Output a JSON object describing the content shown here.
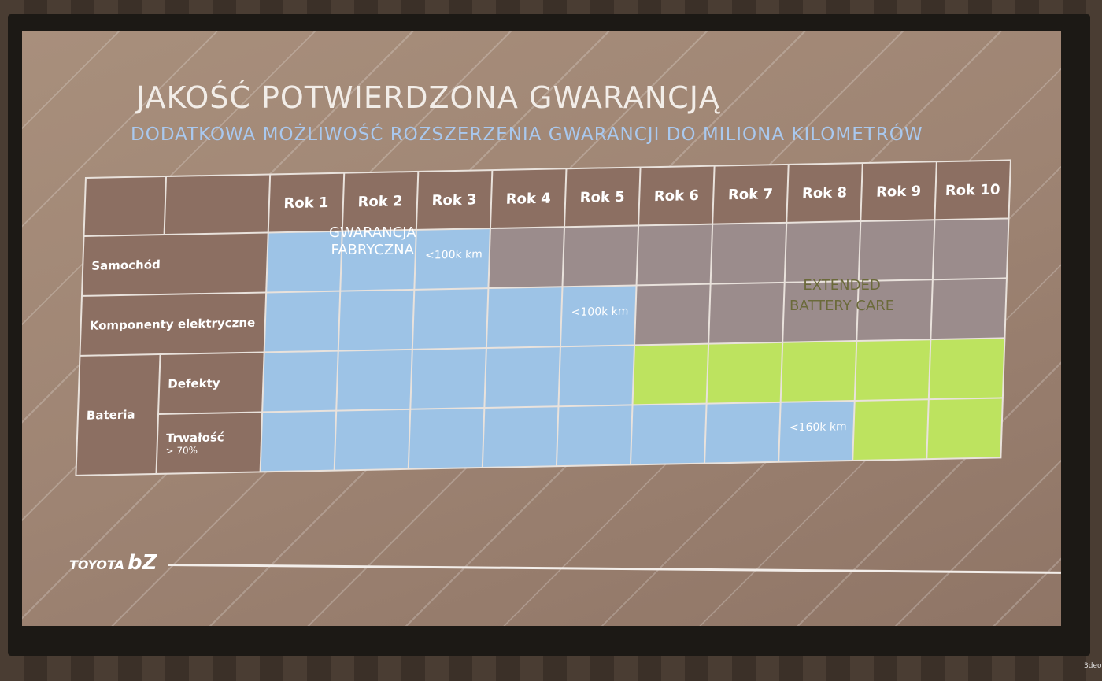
{
  "slide": {
    "title": "JAKOŚĆ POTWIERDZONA GWARANCJĄ",
    "subtitle": "DODATKOWA MOŻLIWOŚĆ ROZSZERZENIA GWARANCJI DO MILIONA KILOMETRÓW",
    "logo_text": "TOYOTA",
    "logo_mark": "bZ",
    "overlay_factory": [
      "GWARANCJA",
      "FABRYCZNA"
    ],
    "overlay_extended": [
      "EXTENDED",
      "BATTERY CARE"
    ]
  },
  "table": {
    "years": [
      "Rok 1",
      "Rok 2",
      "Rok 3",
      "Rok 4",
      "Rok 5",
      "Rok 6",
      "Rok 7",
      "Rok 8",
      "Rok 9",
      "Rok 10"
    ],
    "rows": [
      {
        "label": "Samochód",
        "cells": [
          "blue",
          "blue",
          "blue",
          "grey",
          "grey",
          "grey",
          "grey",
          "grey",
          "grey",
          "grey"
        ],
        "note": "<100k km"
      },
      {
        "label": "Komponenty elektryczne",
        "cells": [
          "blue",
          "blue",
          "blue",
          "blue",
          "blue",
          "grey",
          "grey",
          "grey",
          "grey",
          "grey"
        ],
        "note": "<100k km"
      },
      {
        "group": "Bateria",
        "label": "Defekty",
        "cells": [
          "blue",
          "blue",
          "blue",
          "blue",
          "blue",
          "green",
          "green",
          "green",
          "green",
          "green"
        ]
      },
      {
        "label": "Trwałość",
        "sublabel": "> 70%",
        "cells": [
          "blue",
          "blue",
          "blue",
          "blue",
          "blue",
          "blue",
          "blue",
          "blue",
          "green",
          "green"
        ],
        "note": "<160k km"
      }
    ]
  },
  "colors": {
    "factory": "#9dc3e6",
    "none": "#9b8c8c",
    "extended": "#bde35f",
    "label_bg": "#8c6f62"
  },
  "screen_brand": "3deo"
}
